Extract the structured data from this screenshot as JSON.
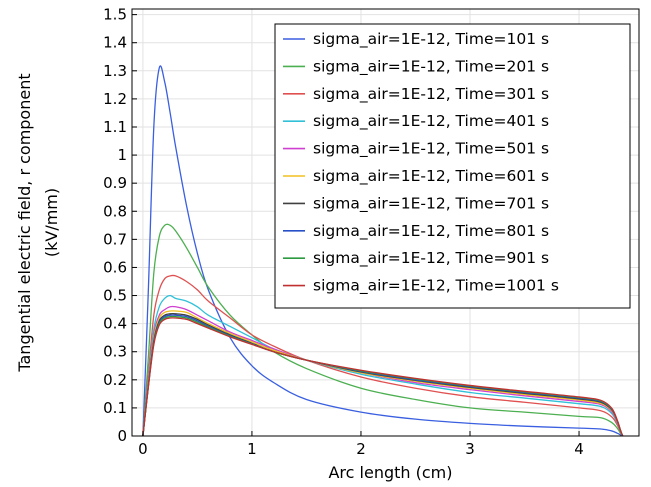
{
  "chart_data": {
    "type": "line",
    "xlabel": "Arc length (cm)",
    "ylabel_line1": "Tangential electric field, r component",
    "ylabel_line2": "(kV/mm)",
    "xlim": [
      -0.1,
      4.55
    ],
    "ylim": [
      0,
      1.52
    ],
    "x_ticks": [
      0,
      1,
      2,
      3,
      4
    ],
    "y_ticks": [
      0,
      0.1,
      0.2,
      0.3,
      0.4,
      0.5,
      0.6,
      0.7,
      0.8,
      0.9,
      1,
      1.1,
      1.2,
      1.3,
      1.4,
      1.5
    ],
    "grid": true,
    "legend_position": "top-right",
    "x": [
      0,
      0.05,
      0.1,
      0.15,
      0.2,
      0.25,
      0.3,
      0.4,
      0.5,
      0.6,
      0.8,
      1.0,
      1.2,
      1.5,
      2.0,
      2.5,
      3.0,
      3.5,
      4.0,
      4.2,
      4.3,
      4.35,
      4.38,
      4.4
    ],
    "series": [
      {
        "name": "sigma_air=1E-12, Time=101 s",
        "color": "#3a5fe0",
        "values": [
          0,
          0.52,
          1.1,
          1.31,
          1.26,
          1.15,
          1.03,
          0.82,
          0.65,
          0.52,
          0.35,
          0.25,
          0.19,
          0.13,
          0.085,
          0.06,
          0.045,
          0.035,
          0.028,
          0.025,
          0.018,
          0.01,
          0.004,
          0
        ]
      },
      {
        "name": "sigma_air=1E-12, Time=201 s",
        "color": "#4caf50",
        "values": [
          0,
          0.28,
          0.58,
          0.71,
          0.75,
          0.75,
          0.73,
          0.67,
          0.6,
          0.53,
          0.43,
          0.36,
          0.3,
          0.24,
          0.17,
          0.13,
          0.1,
          0.085,
          0.07,
          0.065,
          0.048,
          0.028,
          0.01,
          0
        ]
      },
      {
        "name": "sigma_air=1E-12, Time=301 s",
        "color": "#e05050",
        "values": [
          0,
          0.22,
          0.43,
          0.52,
          0.56,
          0.57,
          0.57,
          0.55,
          0.52,
          0.48,
          0.42,
          0.36,
          0.32,
          0.27,
          0.21,
          0.17,
          0.14,
          0.12,
          0.1,
          0.09,
          0.068,
          0.04,
          0.015,
          0
        ]
      },
      {
        "name": "sigma_air=1E-12, Time=401 s",
        "color": "#30c0d8",
        "values": [
          0,
          0.2,
          0.38,
          0.46,
          0.49,
          0.5,
          0.49,
          0.48,
          0.46,
          0.43,
          0.39,
          0.35,
          0.31,
          0.27,
          0.22,
          0.185,
          0.155,
          0.135,
          0.115,
          0.105,
          0.08,
          0.047,
          0.017,
          0
        ]
      },
      {
        "name": "sigma_air=1E-12, Time=501 s",
        "color": "#d040d0",
        "values": [
          0,
          0.19,
          0.36,
          0.43,
          0.45,
          0.46,
          0.46,
          0.45,
          0.43,
          0.41,
          0.37,
          0.34,
          0.31,
          0.27,
          0.225,
          0.19,
          0.165,
          0.143,
          0.123,
          0.112,
          0.086,
          0.05,
          0.018,
          0
        ]
      },
      {
        "name": "sigma_air=1E-12, Time=601 s",
        "color": "#f0c020",
        "values": [
          0,
          0.185,
          0.35,
          0.42,
          0.44,
          0.445,
          0.445,
          0.44,
          0.42,
          0.4,
          0.365,
          0.335,
          0.305,
          0.27,
          0.225,
          0.195,
          0.17,
          0.148,
          0.128,
          0.116,
          0.09,
          0.052,
          0.019,
          0
        ]
      },
      {
        "name": "sigma_air=1E-12, Time=701 s",
        "color": "#404040",
        "values": [
          0,
          0.18,
          0.34,
          0.41,
          0.43,
          0.435,
          0.435,
          0.43,
          0.415,
          0.395,
          0.36,
          0.33,
          0.3,
          0.27,
          0.228,
          0.198,
          0.173,
          0.152,
          0.132,
          0.12,
          0.093,
          0.054,
          0.02,
          0
        ]
      },
      {
        "name": "sigma_air=1E-12, Time=801 s",
        "color": "#2850c8",
        "values": [
          0,
          0.178,
          0.335,
          0.405,
          0.425,
          0.43,
          0.43,
          0.425,
          0.41,
          0.39,
          0.357,
          0.328,
          0.3,
          0.27,
          0.23,
          0.2,
          0.176,
          0.155,
          0.135,
          0.123,
          0.095,
          0.055,
          0.02,
          0
        ]
      },
      {
        "name": "sigma_air=1E-12, Time=901 s",
        "color": "#2e9a40",
        "values": [
          0,
          0.176,
          0.33,
          0.4,
          0.42,
          0.425,
          0.425,
          0.42,
          0.405,
          0.387,
          0.355,
          0.327,
          0.3,
          0.27,
          0.232,
          0.203,
          0.178,
          0.157,
          0.137,
          0.125,
          0.097,
          0.056,
          0.021,
          0
        ]
      },
      {
        "name": "sigma_air=1E-12, Time=1001 s",
        "color": "#c03030",
        "values": [
          0,
          0.174,
          0.325,
          0.395,
          0.415,
          0.42,
          0.42,
          0.415,
          0.4,
          0.384,
          0.353,
          0.326,
          0.3,
          0.27,
          0.234,
          0.205,
          0.18,
          0.159,
          0.139,
          0.127,
          0.099,
          0.057,
          0.021,
          0
        ]
      }
    ]
  }
}
